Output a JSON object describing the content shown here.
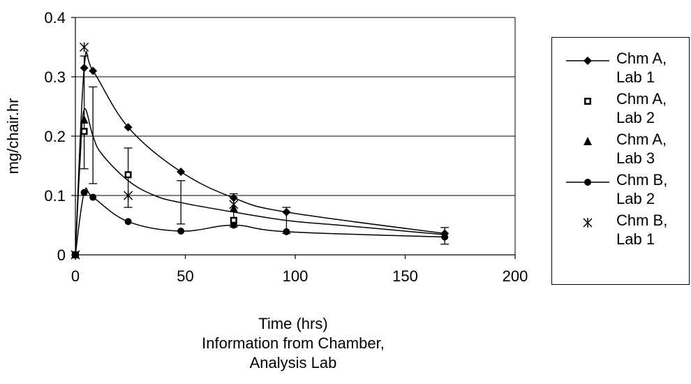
{
  "chart_data": {
    "type": "scatter",
    "ylabel": "mg/chair.hr",
    "xlabel_lines": [
      "Time (hrs)",
      "Information from Chamber,",
      "Analysis Lab"
    ],
    "xlim": [
      0,
      200
    ],
    "ylim": [
      0,
      0.4
    ],
    "x_ticks": [
      "0",
      "50",
      "100",
      "150",
      "200"
    ],
    "y_ticks": [
      "0",
      "0.1",
      "0.2",
      "0.3",
      "0.4"
    ],
    "grid": "horizontal",
    "legend_position": "right",
    "series": [
      {
        "name_lines": [
          "Chm A,",
          "Lab 1"
        ],
        "marker": "diamond",
        "line": true,
        "x": [
          0,
          4,
          8,
          24,
          48,
          72,
          96,
          168
        ],
        "y": [
          0,
          0.315,
          0.31,
          0.215,
          0.14,
          0.096,
          0.072,
          0.036
        ]
      },
      {
        "name_lines": [
          "Chm A,",
          "Lab 2"
        ],
        "marker": "square",
        "line": false,
        "x": [
          0,
          4,
          24,
          72
        ],
        "y": [
          0,
          0.208,
          0.135,
          0.058
        ]
      },
      {
        "name_lines": [
          "Chm A,",
          "Lab 3"
        ],
        "marker": "triangle",
        "line": false,
        "x": [
          0,
          4,
          72
        ],
        "y": [
          0,
          0.227,
          0.078
        ]
      },
      {
        "name_lines": [
          "Chm B,",
          "Lab 2"
        ],
        "marker": "circle",
        "line": true,
        "x": [
          0,
          4,
          8,
          24,
          48,
          72,
          96,
          168
        ],
        "y": [
          0,
          0.105,
          0.097,
          0.056,
          0.04,
          0.05,
          0.039,
          0.03
        ]
      },
      {
        "name_lines": [
          "Chm B,",
          "Lab 1"
        ],
        "marker": "star",
        "line": false,
        "x": [
          0,
          4,
          24,
          72
        ],
        "y": [
          0,
          0.35,
          0.1,
          0.085
        ]
      }
    ],
    "mean_curve": {
      "x": [
        0,
        2,
        4,
        8,
        12,
        24,
        36,
        48,
        72,
        96,
        120,
        144,
        168
      ],
      "y": [
        0,
        0.15,
        0.245,
        0.2,
        0.17,
        0.125,
        0.1,
        0.088,
        0.072,
        0.058,
        0.05,
        0.042,
        0.034
      ]
    },
    "error_bars": [
      {
        "x": 4,
        "low": 0.145,
        "high": 0.335
      },
      {
        "x": 8,
        "low": 0.12,
        "high": 0.283
      },
      {
        "x": 24,
        "low": 0.08,
        "high": 0.18
      },
      {
        "x": 48,
        "low": 0.052,
        "high": 0.125
      },
      {
        "x": 72,
        "low": 0.047,
        "high": 0.103
      },
      {
        "x": 96,
        "low": 0.036,
        "high": 0.08
      },
      {
        "x": 168,
        "low": 0.018,
        "high": 0.046
      }
    ]
  }
}
